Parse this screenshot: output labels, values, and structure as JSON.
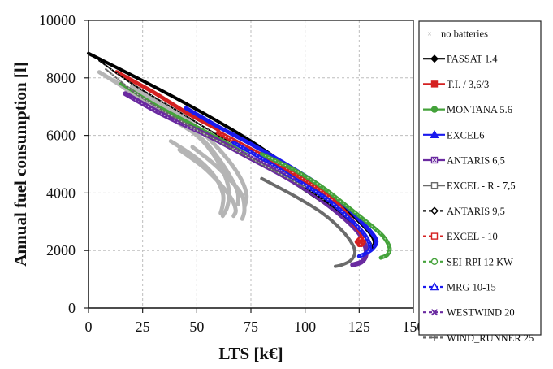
{
  "chart_data": {
    "type": "line",
    "title": "",
    "xlabel": "LTS [k€]",
    "ylabel": "Annual fuel consumption [l]",
    "xlim": [
      0,
      150
    ],
    "ylim": [
      0,
      10000
    ],
    "xticks": [
      "0",
      "25",
      "50",
      "75",
      "100",
      "125",
      "150"
    ],
    "yticks": [
      "0",
      "2000",
      "4000",
      "6000",
      "8000",
      "10000"
    ],
    "grid": true,
    "legend_position": "right",
    "series": [
      {
        "name": "no batteries",
        "color": "#b5b5b5",
        "marker": "x",
        "dashed": false,
        "width": 5,
        "x": [
          [
            5,
            20,
            35,
            50,
            58,
            63,
            65,
            64,
            62
          ],
          [
            12,
            25,
            40,
            52,
            60,
            66,
            69,
            69
          ],
          [
            20,
            35,
            48,
            58,
            66,
            71,
            73,
            72
          ],
          [
            38,
            50,
            58,
            62,
            62,
            61
          ],
          [
            42,
            53,
            61,
            66,
            68,
            67
          ],
          [
            48,
            58,
            66,
            71,
            72,
            71
          ]
        ],
        "y": [
          [
            8200,
            7500,
            6800,
            6000,
            5300,
            4600,
            4000,
            3500,
            3200
          ],
          [
            7900,
            7200,
            6500,
            5900,
            5200,
            4500,
            4000,
            3600
          ],
          [
            7700,
            7000,
            6400,
            5700,
            5000,
            4400,
            3900,
            3500
          ],
          [
            5800,
            5200,
            4600,
            4000,
            3600,
            3300
          ],
          [
            5500,
            4900,
            4300,
            3800,
            3400,
            3200
          ],
          [
            5600,
            5000,
            4400,
            3900,
            3400,
            3100
          ]
        ]
      },
      {
        "name": "PASSAT 1.4",
        "color": "#000000",
        "marker": "diamond",
        "dashed": false,
        "width": 4,
        "x": [
          [
            0,
            25,
            50,
            75,
            100,
            115,
            125,
            130,
            132,
            131,
            129
          ],
          [
            92,
            108,
            118,
            125,
            128,
            128
          ]
        ],
        "y": [
          [
            8850,
            7900,
            6900,
            5800,
            4500,
            3700,
            3000,
            2600,
            2300,
            2100,
            2000
          ],
          [
            4500,
            3700,
            3100,
            2600,
            2200,
            2050
          ]
        ]
      },
      {
        "name": "T.I. / 3,6/3",
        "color": "#d42020",
        "marker": "square",
        "dashed": false,
        "width": 5,
        "x": [
          [
            13,
            30,
            45,
            60
          ]
        ],
        "y": [
          [
            8200,
            7500,
            6800,
            6200
          ]
        ]
      },
      {
        "name": "MONTANA 5.6",
        "color": "#44a23a",
        "marker": "circle",
        "dashed": false,
        "width": 4,
        "x": [
          [
            15,
            30,
            45,
            60,
            74
          ]
        ],
        "y": [
          [
            7800,
            7100,
            6500,
            5900,
            5300
          ]
        ]
      },
      {
        "name": "EXCEL6",
        "color": "#1a1aee",
        "marker": "triangle",
        "dashed": false,
        "width": 5,
        "x": [
          [
            45,
            60,
            75,
            90,
            105,
            118,
            126,
            131,
            133,
            131,
            128
          ]
        ],
        "y": [
          [
            6950,
            6300,
            5700,
            5050,
            4350,
            3600,
            3000,
            2600,
            2300,
            2050,
            1900
          ]
        ]
      },
      {
        "name": "ANTARIS 6,5",
        "color": "#6a2aa0",
        "marker": "x-square",
        "dashed": false,
        "width": 6,
        "x": [
          [
            17,
            35,
            55,
            75,
            90,
            105,
            117,
            125,
            128,
            128,
            126,
            122
          ]
        ],
        "y": [
          [
            7450,
            6700,
            6000,
            5200,
            4600,
            3900,
            3200,
            2600,
            2100,
            1800,
            1600,
            1500
          ]
        ]
      },
      {
        "name": "EXCEL - R - 7,5",
        "color": "#6b6b6b",
        "marker": "square-open",
        "dashed": false,
        "width": 4,
        "x": [
          [
            80,
            95,
            108,
            117,
            122,
            123,
            121,
            117,
            114
          ]
        ],
        "y": [
          [
            4500,
            3900,
            3300,
            2700,
            2200,
            1900,
            1650,
            1500,
            1450
          ]
        ]
      },
      {
        "name": "ANTARIS 9,5",
        "color": "#000000",
        "marker": "diamond-open",
        "dashed": true,
        "width": 2,
        "x": [
          [
            5,
            20,
            40,
            60,
            80,
            100,
            115,
            125,
            130,
            131
          ]
        ],
        "y": [
          [
            8600,
            7800,
            6900,
            6000,
            5200,
            4200,
            3400,
            2700,
            2300,
            2100
          ]
        ]
      },
      {
        "name": "EXCEL - 10",
        "color": "#d42020",
        "marker": "square-open",
        "dashed": true,
        "width": 6,
        "x": [
          [
            60,
            75,
            90,
            105,
            115,
            122,
            126,
            127,
            126
          ],
          [
            124,
            127,
            127,
            125
          ]
        ],
        "y": [
          [
            6100,
            5500,
            4900,
            4200,
            3600,
            3000,
            2600,
            2300,
            2200
          ],
          [
            2300,
            2500,
            2300,
            2200
          ]
        ]
      },
      {
        "name": "SEI-RPI 12 KW",
        "color": "#44a23a",
        "marker": "circle-open",
        "dashed": true,
        "width": 5,
        "x": [
          [
            80,
            95,
            108,
            120,
            130,
            136,
            139,
            138,
            135
          ]
        ],
        "y": [
          [
            5350,
            4800,
            4200,
            3500,
            2900,
            2500,
            2100,
            1850,
            1750
          ]
        ]
      },
      {
        "name": "MRG 10-15",
        "color": "#1a1aee",
        "marker": "triangle-open",
        "dashed": true,
        "width": 5,
        "x": [
          [
            67,
            80,
            95,
            110,
            122,
            128,
            130,
            128,
            125
          ]
        ],
        "y": [
          [
            5750,
            5200,
            4500,
            3800,
            3000,
            2500,
            2100,
            1900,
            1800
          ]
        ]
      },
      {
        "name": "WESTWIND 20",
        "color": "#6a2aa0",
        "marker": "x",
        "dashed": true,
        "width": 2,
        "x": [
          [
            20,
            40,
            60,
            80,
            95
          ]
        ],
        "y": [
          [
            7300,
            6500,
            5800,
            5100,
            4500
          ]
        ]
      },
      {
        "name": "WIND_RUNNER 25",
        "color": "#666666",
        "marker": "plus",
        "dashed": true,
        "width": 2,
        "x": [
          [
            8,
            25,
            45,
            65,
            85,
            100
          ]
        ],
        "y": [
          [
            8300,
            7300,
            6400,
            5600,
            4800,
            4200
          ]
        ]
      }
    ]
  }
}
